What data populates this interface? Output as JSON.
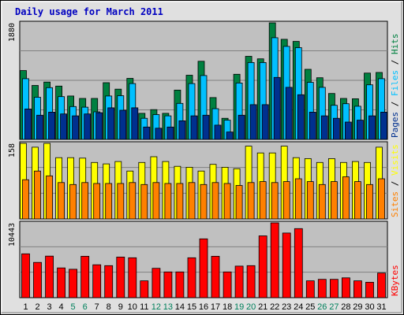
{
  "chart_data": {
    "type": "bar",
    "title": "Daily usage for March 2011",
    "days": [
      "1",
      "2",
      "3",
      "4",
      "5",
      "6",
      "7",
      "8",
      "9",
      "10",
      "11",
      "12",
      "13",
      "14",
      "15",
      "16",
      "17",
      "18",
      "19",
      "20",
      "21",
      "22",
      "23",
      "24",
      "25",
      "26",
      "27",
      "28",
      "29",
      "30",
      "31"
    ],
    "weekend_days": [
      "5",
      "6",
      "12",
      "13",
      "19",
      "20",
      "26",
      "27"
    ],
    "colors": {
      "hits": "#008040",
      "files": "#00c0ff",
      "pages": "#00308f",
      "visits": "#ffff00",
      "sites": "#ff8000",
      "kbytes": "#ff0000",
      "title": "#0000c0",
      "weekday_label": "#000000",
      "weekend_label": "#00805c",
      "panel_bg": "#c0c0c0",
      "frame_bg": "#e0e0e0"
    },
    "panels": [
      {
        "name": "hits-files-pages",
        "max_label": "1880",
        "ymax": 1880,
        "series": [
          {
            "name": "Hits",
            "key": "hits",
            "values": [
              1110,
              870,
              925,
              860,
              700,
              660,
              660,
              915,
              810,
              985,
              420,
              480,
              420,
              795,
              1035,
              1260,
              675,
              340,
              1050,
              1340,
              1300,
              1880,
              1615,
              1580,
              1130,
              995,
              740,
              660,
              655,
              1070,
              1080
            ]
          },
          {
            "name": "Files",
            "key": "files",
            "values": [
              980,
              680,
              835,
              690,
              530,
              520,
              445,
              700,
              705,
              900,
              340,
              400,
              380,
              580,
              900,
              1030,
              495,
              310,
              910,
              1240,
              1240,
              1640,
              1500,
              1480,
              920,
              840,
              550,
              575,
              535,
              880,
              980
            ]
          },
          {
            "name": "Pages",
            "key": "pages",
            "values": [
              490,
              390,
              440,
              410,
              380,
              410,
              430,
              510,
              470,
              510,
              200,
              180,
              200,
              300,
              380,
              390,
              230,
              120,
              390,
              560,
              560,
              1000,
              840,
              720,
              440,
              380,
              340,
              280,
              310,
              380,
              440
            ]
          }
        ],
        "right_label": [
          {
            "text": "Pages",
            "key": "pages"
          },
          {
            "text": " / ",
            "key": "divider"
          },
          {
            "text": "Files",
            "key": "files"
          },
          {
            "text": " / ",
            "key": "divider"
          },
          {
            "text": "Hits",
            "key": "hits"
          }
        ]
      },
      {
        "name": "visits-sites",
        "max_label": "158",
        "ymax": 158,
        "series": [
          {
            "name": "Visits",
            "key": "visits",
            "values": [
              158,
              150,
              158,
              128,
              128,
              127,
              118,
              115,
              120,
              100,
              118,
              130,
              120,
              110,
              108,
              100,
              114,
              108,
              105,
              152,
              138,
              138,
              152,
              128,
              126,
              118,
              126,
              118,
              120,
              118,
              150
            ]
          },
          {
            "name": "Sites",
            "key": "sites",
            "values": [
              82,
              100,
              90,
              76,
              72,
              76,
              74,
              74,
              74,
              76,
              72,
              76,
              74,
              74,
              76,
              72,
              76,
              74,
              70,
              76,
              78,
              76,
              78,
              84,
              78,
              72,
              78,
              88,
              78,
              72,
              84
            ]
          }
        ],
        "right_label": [
          {
            "text": "Sites",
            "key": "sites"
          },
          {
            "text": " / ",
            "key": "divider"
          },
          {
            "text": "Visits",
            "key": "visits"
          }
        ]
      },
      {
        "name": "kbytes",
        "max_label": "10443",
        "ymax": 10443,
        "series": [
          {
            "name": "KBytes",
            "key": "kbytes",
            "values": [
              6120,
              4930,
              5800,
              4150,
              3970,
              5780,
              4590,
              4470,
              5670,
              5570,
              2350,
              4100,
              3590,
              3590,
              5570,
              8210,
              5780,
              3590,
              4410,
              4470,
              8630,
              10443,
              9030,
              9640,
              2350,
              2560,
              2560,
              2770,
              2350,
              2150,
              3440
            ]
          }
        ],
        "right_label": [
          {
            "text": "KBytes",
            "key": "kbytes"
          }
        ]
      }
    ]
  }
}
